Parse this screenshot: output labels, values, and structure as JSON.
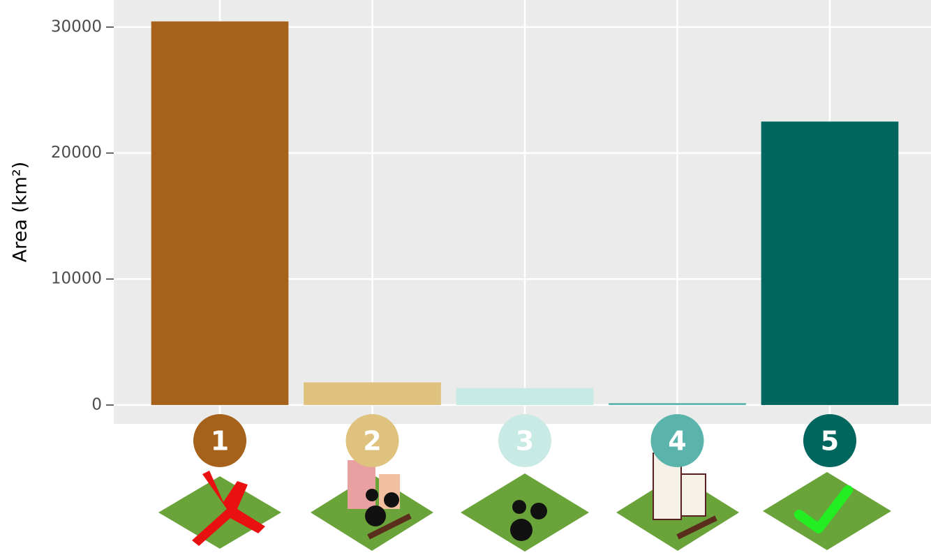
{
  "chart_data": {
    "type": "bar",
    "y_label": "Area (km²)",
    "categories": [
      "1",
      "2",
      "3",
      "4",
      "5"
    ],
    "values": [
      30450,
      1800,
      1350,
      150,
      22500
    ],
    "colors": [
      "#a6611a",
      "#dfc27d",
      "#c7eae5",
      "#5ab4ac",
      "#01665e"
    ],
    "ylim": [
      -1500,
      32150
    ],
    "yticks": [
      0,
      10000,
      20000,
      30000
    ],
    "grid": true
  }
}
